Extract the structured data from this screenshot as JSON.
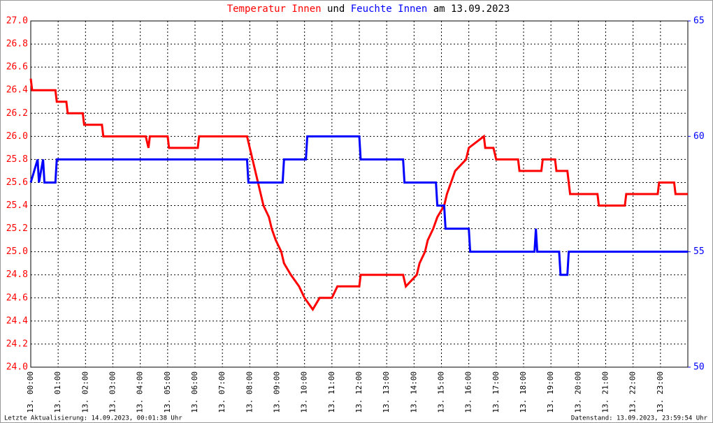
{
  "chart_data": {
    "type": "line",
    "title_joiner": "und",
    "title_suffix": "am 13.09.2023",
    "footer_left": "Letzte Aktualisierung: 14.09.2023, 00:01:38 Uhr",
    "footer_right": "Datenstand: 13.09.2023, 23:59:54 Uhr",
    "grid": true,
    "xlim": [
      0,
      24
    ],
    "xticks": [
      {
        "value": 0,
        "label": "13. 00:00"
      },
      {
        "value": 1,
        "label": "13. 01:00"
      },
      {
        "value": 2,
        "label": "13. 02:00"
      },
      {
        "value": 3,
        "label": "13. 03:00"
      },
      {
        "value": 4,
        "label": "13. 04:00"
      },
      {
        "value": 5,
        "label": "13. 05:00"
      },
      {
        "value": 6,
        "label": "13. 06:00"
      },
      {
        "value": 7,
        "label": "13. 07:00"
      },
      {
        "value": 8,
        "label": "13. 08:00"
      },
      {
        "value": 9,
        "label": "13. 09:00"
      },
      {
        "value": 10,
        "label": "13. 10:00"
      },
      {
        "value": 11,
        "label": "13. 11:00"
      },
      {
        "value": 12,
        "label": "13. 12:00"
      },
      {
        "value": 13,
        "label": "13. 13:00"
      },
      {
        "value": 14,
        "label": "13. 14:00"
      },
      {
        "value": 15,
        "label": "13. 15:00"
      },
      {
        "value": 16,
        "label": "13. 16:00"
      },
      {
        "value": 17,
        "label": "13. 17:00"
      },
      {
        "value": 18,
        "label": "13. 18:00"
      },
      {
        "value": 19,
        "label": "13. 19:00"
      },
      {
        "value": 20,
        "label": "13. 20:00"
      },
      {
        "value": 21,
        "label": "13. 21:00"
      },
      {
        "value": 22,
        "label": "13. 22:00"
      },
      {
        "value": 23,
        "label": "13. 23:00"
      }
    ],
    "ylim": [
      24.0,
      27.0
    ],
    "yticks": [
      {
        "value": 24.0,
        "label": "24.0"
      },
      {
        "value": 24.2,
        "label": "24.2"
      },
      {
        "value": 24.4,
        "label": "24.4"
      },
      {
        "value": 24.6,
        "label": "24.6"
      },
      {
        "value": 24.8,
        "label": "24.8"
      },
      {
        "value": 25.0,
        "label": "25.0"
      },
      {
        "value": 25.2,
        "label": "25.2"
      },
      {
        "value": 25.4,
        "label": "25.4"
      },
      {
        "value": 25.6,
        "label": "25.6"
      },
      {
        "value": 25.8,
        "label": "25.8"
      },
      {
        "value": 26.0,
        "label": "26.0"
      },
      {
        "value": 26.2,
        "label": "26.2"
      },
      {
        "value": 26.4,
        "label": "26.4"
      },
      {
        "value": 26.6,
        "label": "26.6"
      },
      {
        "value": 26.8,
        "label": "26.8"
      },
      {
        "value": 27.0,
        "label": "27.0"
      }
    ],
    "y2lim": [
      50,
      65
    ],
    "y2ticks": [
      50,
      55,
      60,
      65
    ],
    "series": [
      {
        "name": "Temperatur Innen",
        "color": "#ff0000",
        "x": [
          0,
          0.05,
          0.9,
          0.95,
          1.3,
          1.35,
          1.9,
          1.95,
          2.6,
          2.65,
          4.2,
          4.3,
          4.35,
          5.0,
          5.05,
          6.1,
          6.15,
          7.9,
          8.0,
          8.1,
          8.2,
          8.3,
          8.5,
          8.7,
          8.8,
          8.95,
          9.15,
          9.25,
          9.5,
          9.8,
          10.0,
          10.3,
          10.55,
          11.0,
          11.2,
          12.0,
          12.05,
          13.6,
          13.7,
          14.1,
          14.2,
          14.4,
          14.5,
          14.7,
          14.85,
          15.1,
          15.2,
          15.35,
          15.5,
          15.9,
          16.0,
          16.55,
          16.6,
          16.9,
          17.0,
          17.8,
          17.85,
          18.65,
          18.7,
          19.15,
          19.2,
          19.6,
          19.7,
          20.7,
          20.75,
          21.7,
          21.75,
          22.9,
          22.95,
          23.5,
          23.55,
          24
        ],
        "values": [
          26.5,
          26.4,
          26.4,
          26.3,
          26.3,
          26.2,
          26.2,
          26.1,
          26.1,
          26.0,
          26.0,
          25.9,
          26.0,
          26.0,
          25.9,
          25.9,
          26.0,
          26.0,
          25.9,
          25.8,
          25.7,
          25.6,
          25.4,
          25.3,
          25.2,
          25.1,
          25.0,
          24.9,
          24.8,
          24.7,
          24.6,
          24.5,
          24.6,
          24.6,
          24.7,
          24.7,
          24.8,
          24.8,
          24.7,
          24.8,
          24.9,
          25.0,
          25.1,
          25.2,
          25.3,
          25.4,
          25.5,
          25.6,
          25.7,
          25.8,
          25.9,
          26.0,
          25.9,
          25.9,
          25.8,
          25.8,
          25.7,
          25.7,
          25.8,
          25.8,
          25.7,
          25.7,
          25.5,
          25.5,
          25.4,
          25.4,
          25.5,
          25.5,
          25.6,
          25.6,
          25.5,
          25.5
        ]
      },
      {
        "name": "Feuchte Innen",
        "color": "#0000ff",
        "axis": "y2",
        "x": [
          0,
          0.25,
          0.3,
          0.45,
          0.5,
          0.9,
          0.95,
          7.9,
          7.95,
          9.2,
          9.25,
          10.05,
          10.1,
          12.0,
          12.05,
          13.6,
          13.65,
          14.8,
          14.85,
          15.1,
          15.15,
          16.0,
          16.05,
          18.4,
          18.45,
          18.5,
          19.3,
          19.35,
          19.6,
          19.65,
          24
        ],
        "values": [
          58,
          59,
          58,
          59,
          58,
          58,
          59,
          59,
          58,
          58,
          59,
          59,
          60,
          60,
          59,
          59,
          58,
          58,
          57,
          57,
          56,
          56,
          55,
          55,
          56,
          55,
          55,
          54,
          54,
          55,
          55
        ]
      }
    ]
  }
}
